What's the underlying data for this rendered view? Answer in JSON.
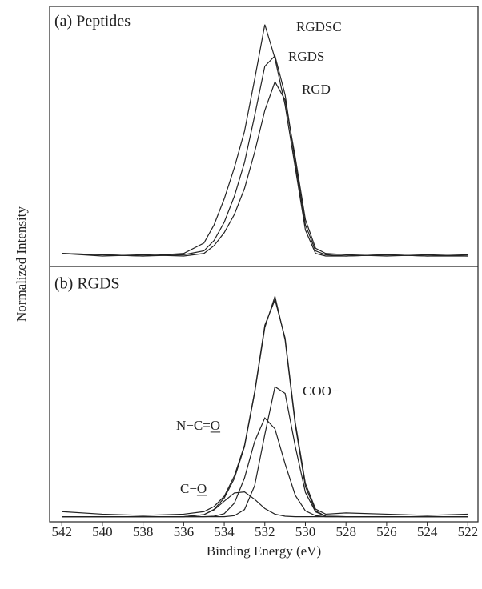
{
  "chart_data": [
    {
      "type": "line",
      "title": "(a) Peptides",
      "y_label": "Normalized Intensity",
      "color": "#222222",
      "x": [
        542,
        540,
        538,
        536,
        535,
        534.5,
        534,
        533.5,
        533,
        532.5,
        532,
        531.5,
        531,
        530.5,
        530,
        529.5,
        529,
        528,
        526,
        524,
        522
      ],
      "xlim": [
        542.6,
        521.5
      ],
      "ylim": [
        0,
        100
      ],
      "series": [
        {
          "name": "RGDSC",
          "values": [
            5,
            4.5,
            4,
            5,
            9,
            16,
            26,
            38,
            52,
            72,
            93,
            80,
            62,
            38,
            14,
            5,
            4,
            4,
            4.5,
            4,
            4.5
          ]
        },
        {
          "name": "RGDS",
          "values": [
            5,
            4.5,
            4,
            4.5,
            6,
            10,
            17,
            27,
            40,
            58,
            77,
            81,
            66,
            40,
            16,
            6,
            4.5,
            4,
            4.5,
            4,
            4
          ]
        },
        {
          "name": "RGD",
          "values": [
            5,
            4,
            4.5,
            4,
            5,
            8,
            13,
            20,
            30,
            44,
            60,
            71,
            64,
            42,
            18,
            7,
            5,
            4.5,
            4,
            4.5,
            4
          ]
        }
      ]
    },
    {
      "type": "line",
      "title": "(b) RGDS",
      "x_label": "Binding Energy (eV)",
      "color": "#222222",
      "x": [
        542,
        540,
        538,
        536,
        535,
        534.5,
        534,
        533.5,
        533,
        532.5,
        532,
        531.5,
        531,
        530.5,
        530,
        529.5,
        529,
        528,
        526,
        524,
        522
      ],
      "xlim": [
        542.6,
        521.5
      ],
      "ylim": [
        0,
        100
      ],
      "xticks": [
        542,
        540,
        538,
        536,
        534,
        532,
        530,
        528,
        526,
        524,
        522
      ],
      "series": [
        {
          "values": [
            4,
            3,
            2.5,
            3,
            4,
            6,
            10,
            18,
            30,
            51,
            77,
            87,
            72,
            39,
            15,
            5,
            3,
            3.5,
            3,
            2.5,
            3
          ]
        },
        {
          "values": [
            2,
            2,
            2,
            2,
            2.8,
            4.9,
            9.3,
            17,
            29.5,
            50.5,
            76.1,
            88.3,
            71.2,
            38,
            13.8,
            4.3,
            2.2,
            2,
            2,
            2,
            2
          ]
        },
        {
          "name": "COO−",
          "values": [
            2,
            2,
            2,
            2,
            2,
            2,
            2,
            2.4,
            4.8,
            14.2,
            34.2,
            52.9,
            50.3,
            29.6,
            11.5,
            3.9,
            2.2,
            2,
            2,
            2,
            2
          ]
        },
        {
          "name": "N−C=O",
          "values": [
            2,
            2,
            2,
            2,
            2,
            2.2,
            3.2,
            7.3,
            17.2,
            31.5,
            40.7,
            36.4,
            22.7,
            10.4,
            4.3,
            2.4,
            2,
            2,
            2,
            2,
            2
          ]
        },
        {
          "name": "C−O",
          "values": [
            2,
            2,
            2,
            2,
            2.8,
            4.7,
            8.1,
            11.3,
            11.7,
            8.8,
            5.2,
            3,
            2.2,
            2,
            2,
            2,
            2,
            2,
            2,
            2,
            2
          ]
        }
      ]
    }
  ]
}
